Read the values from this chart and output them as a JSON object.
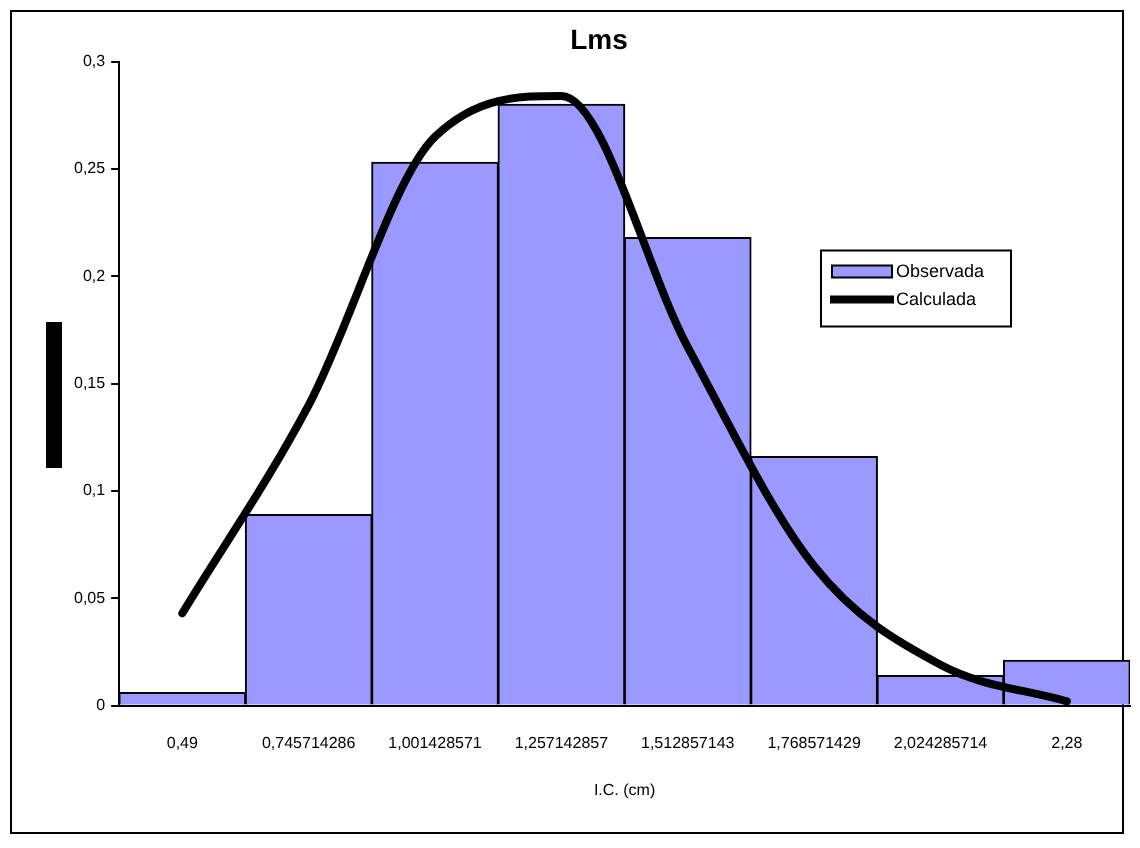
{
  "chart_data": {
    "type": "bar",
    "title": "Lms",
    "xlabel": "I.C. (cm)",
    "categories": [
      "0,49",
      "0,745714286",
      "1,001428571",
      "1,257142857",
      "1,512857143",
      "1,768571429",
      "2,024285714",
      "2,28"
    ],
    "series": [
      {
        "name": "Observada",
        "color": "#9999ff",
        "values": [
          0.006,
          0.089,
          0.253,
          0.28,
          0.218,
          0.116,
          0.014,
          0.021
        ]
      },
      {
        "name": "Calculada",
        "type": "line",
        "color": "#000000",
        "values": [
          0.043,
          0.14,
          0.265,
          0.284,
          0.167,
          0.065,
          0.019,
          0.002
        ]
      }
    ],
    "ylim": [
      0,
      0.3
    ],
    "yticks": [
      {
        "value": 0,
        "label": "0"
      },
      {
        "value": 0.05,
        "label": "0,05"
      },
      {
        "value": 0.1,
        "label": "0,1"
      },
      {
        "value": 0.15,
        "label": "0,15"
      },
      {
        "value": 0.2,
        "label": "0,2"
      },
      {
        "value": 0.25,
        "label": "0,25"
      },
      {
        "value": 0.3,
        "label": "0,3"
      }
    ],
    "grid": false,
    "legend": "right",
    "marker": "none"
  }
}
